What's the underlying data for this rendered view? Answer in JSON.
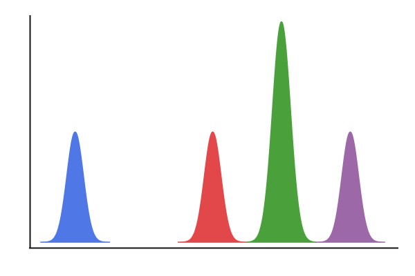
{
  "chart_data": {
    "type": "area",
    "title": "",
    "xlabel": "",
    "ylabel": "",
    "xlim": [
      0,
      5.35
    ],
    "ylim": [
      0,
      2.06
    ],
    "grid": false,
    "legend": "none",
    "series": [
      {
        "center": 0.65,
        "sigma": 0.12,
        "half_width": 0.5,
        "peak": 1.0,
        "color": "#4f77e6"
      },
      {
        "center": 2.65,
        "sigma": 0.12,
        "half_width": 0.5,
        "peak": 1.0,
        "color": "#e2474a"
      },
      {
        "center": 3.65,
        "sigma": 0.13,
        "half_width": 0.5,
        "peak": 2.0,
        "color": "#4aa13b"
      },
      {
        "center": 4.65,
        "sigma": 0.12,
        "half_width": 0.5,
        "peak": 1.0,
        "color": "#9c68a8"
      }
    ]
  }
}
